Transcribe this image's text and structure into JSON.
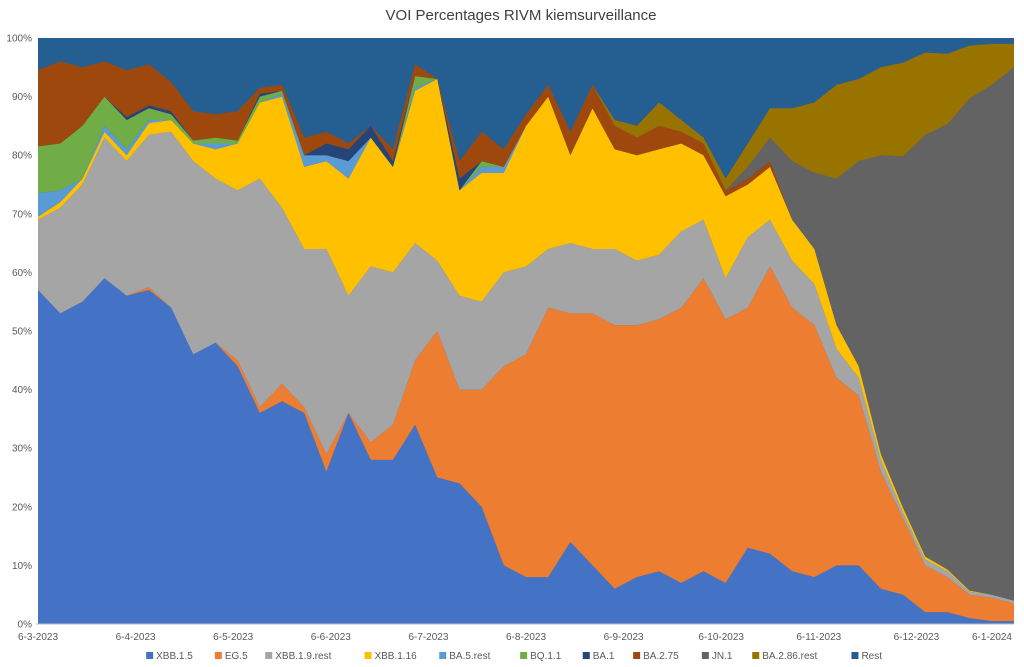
{
  "chart_data": {
    "type": "area",
    "stacked": true,
    "title": "VOI Percentages RIVM kiemsurveillance",
    "xlabel": "",
    "ylabel": "",
    "ylim": [
      0,
      100
    ],
    "y_ticks": [
      "0%",
      "10%",
      "20%",
      "30%",
      "40%",
      "50%",
      "60%",
      "70%",
      "80%",
      "90%",
      "100%"
    ],
    "x_tick_labels": [
      "6-3-2023",
      "6-4-2023",
      "6-5-2023",
      "6-6-2023",
      "6-7-2023",
      "6-8-2023",
      "6-9-2023",
      "6-10-2023",
      "6-11-2023",
      "6-12-2023",
      "6-1-2024"
    ],
    "x": [
      "6-3-2023",
      "13-3-2023",
      "20-3-2023",
      "27-3-2023",
      "3-4-2023",
      "10-4-2023",
      "17-4-2023",
      "24-4-2023",
      "1-5-2023",
      "8-5-2023",
      "15-5-2023",
      "22-5-2023",
      "29-5-2023",
      "5-6-2023",
      "12-6-2023",
      "19-6-2023",
      "26-6-2023",
      "3-7-2023",
      "10-7-2023",
      "17-7-2023",
      "24-7-2023",
      "31-7-2023",
      "7-8-2023",
      "14-8-2023",
      "21-8-2023",
      "28-8-2023",
      "4-9-2023",
      "11-9-2023",
      "18-9-2023",
      "25-9-2023",
      "2-10-2023",
      "9-10-2023",
      "16-10-2023",
      "23-10-2023",
      "30-10-2023",
      "6-11-2023",
      "13-11-2023",
      "20-11-2023",
      "27-11-2023",
      "4-12-2023",
      "11-12-2023",
      "18-12-2023",
      "25-12-2023",
      "1-1-2024",
      "8-1-2024"
    ],
    "grid": false,
    "legend_position": "bottom",
    "series": [
      {
        "name": "XBB.1.5",
        "color": "#4472C4",
        "values": [
          57,
          53,
          55,
          59,
          56,
          57,
          54,
          46,
          48,
          44,
          36,
          38,
          36,
          26,
          36,
          28,
          28,
          34,
          25,
          24,
          20,
          10,
          8,
          8,
          14,
          10,
          6,
          8,
          9,
          7,
          9,
          7,
          13,
          12,
          9,
          8,
          10,
          10,
          6,
          5,
          2,
          2,
          1,
          0.5,
          0.5
        ]
      },
      {
        "name": "EG.5",
        "color": "#ED7D31",
        "values": [
          0,
          0,
          0,
          0,
          0,
          0.5,
          0,
          0,
          0,
          1,
          1,
          3,
          1,
          3,
          0,
          3,
          6,
          11,
          25,
          16,
          20,
          34,
          38,
          46,
          39,
          43,
          45,
          43,
          43,
          47,
          50,
          45,
          41,
          49,
          45,
          43,
          32,
          29,
          20,
          13,
          8,
          6,
          4,
          4,
          3
        ]
      },
      {
        "name": "XBB.1.9.rest",
        "color": "#A5A5A5",
        "values": [
          12,
          18,
          20,
          24,
          23,
          26,
          30,
          33,
          28,
          29,
          39,
          30,
          27,
          35,
          20,
          30,
          26,
          20,
          12,
          16,
          15,
          16,
          15,
          10,
          12,
          11,
          13,
          11,
          11,
          13,
          10,
          7,
          12,
          8,
          8,
          7,
          5,
          3,
          2,
          1,
          1,
          1,
          0.5,
          0.5,
          0.5
        ]
      },
      {
        "name": "XBB.1.16",
        "color": "#FFC000",
        "values": [
          0.5,
          1,
          1,
          1,
          1,
          2,
          2,
          3,
          5,
          8,
          13,
          19,
          14,
          15,
          20,
          22,
          18,
          26,
          31,
          18,
          22,
          17,
          24,
          26,
          15,
          24,
          17,
          18,
          18,
          15,
          11,
          14,
          9,
          9,
          7,
          6,
          4,
          2,
          1,
          0.8,
          0.5,
          0.3,
          0.2,
          0,
          0
        ]
      },
      {
        "name": "BA.5.rest",
        "color": "#5B9BD5",
        "values": [
          4,
          2,
          0,
          1,
          1,
          0.5,
          0,
          0,
          1,
          0,
          0,
          0.5,
          2,
          1,
          3,
          0,
          0,
          0.5,
          0,
          0,
          1,
          1,
          0,
          0,
          0,
          0,
          0,
          0,
          0,
          0,
          0,
          0,
          0,
          0,
          0,
          0,
          0,
          0,
          0,
          0,
          0,
          0,
          0,
          0,
          0
        ]
      },
      {
        "name": "BQ.1.1",
        "color": "#70AD47",
        "values": [
          8,
          8,
          9,
          5,
          5,
          2,
          1,
          0.5,
          1,
          0.5,
          1,
          0.5,
          0,
          0,
          0,
          0,
          0,
          2,
          0,
          0,
          1,
          0,
          0,
          0,
          0,
          0,
          0,
          0,
          0,
          0,
          0,
          0,
          0,
          0,
          0,
          0,
          0,
          0,
          0,
          0,
          0,
          0,
          0,
          0,
          0
        ]
      },
      {
        "name": "BA.1",
        "color": "#264478",
        "values": [
          0,
          0,
          0,
          0,
          0.5,
          0.5,
          0.5,
          0,
          0,
          0,
          0.5,
          0,
          0,
          2,
          2,
          2,
          1,
          0,
          0,
          2,
          0,
          0,
          0,
          0,
          0,
          0,
          0,
          0,
          0,
          0,
          0,
          0,
          0,
          0,
          0,
          0,
          0,
          0,
          0,
          0,
          0,
          0,
          0,
          0,
          0
        ]
      },
      {
        "name": "BA.2.75",
        "color": "#9E480E",
        "values": [
          13,
          14,
          10,
          6,
          8,
          7,
          5,
          5,
          4,
          5,
          1,
          1,
          3,
          2,
          1,
          0,
          2,
          2,
          0,
          3,
          5,
          3,
          2,
          2,
          4,
          4,
          4,
          3,
          4,
          2,
          2,
          1,
          1,
          1,
          0,
          0,
          0,
          0,
          0,
          0,
          0,
          0,
          0,
          0,
          0
        ]
      },
      {
        "name": "JN.1",
        "color": "#636363",
        "values": [
          0,
          0,
          0,
          0,
          0,
          0,
          0,
          0,
          0,
          0,
          0,
          0,
          0,
          0,
          0,
          0,
          0,
          0,
          0,
          0,
          0,
          0,
          0,
          0,
          0,
          0,
          0,
          0,
          0,
          0,
          0,
          0,
          2,
          4,
          10,
          13,
          25,
          35,
          51,
          60,
          72,
          76,
          84,
          87,
          91
        ]
      },
      {
        "name": "BA.2.86.rest",
        "color": "#997300",
        "values": [
          0,
          0,
          0,
          0,
          0,
          0,
          0,
          0,
          0,
          0,
          0,
          0,
          0,
          0,
          0,
          0,
          0,
          0,
          0,
          0,
          0,
          0,
          0,
          0,
          0,
          0,
          1,
          2,
          4,
          2,
          1,
          2,
          4,
          5,
          9,
          12,
          16,
          14,
          15,
          16,
          14,
          12,
          9,
          7,
          4
        ]
      }
    ],
    "rest": {
      "name": "Rest",
      "color": "#255E91"
    }
  }
}
